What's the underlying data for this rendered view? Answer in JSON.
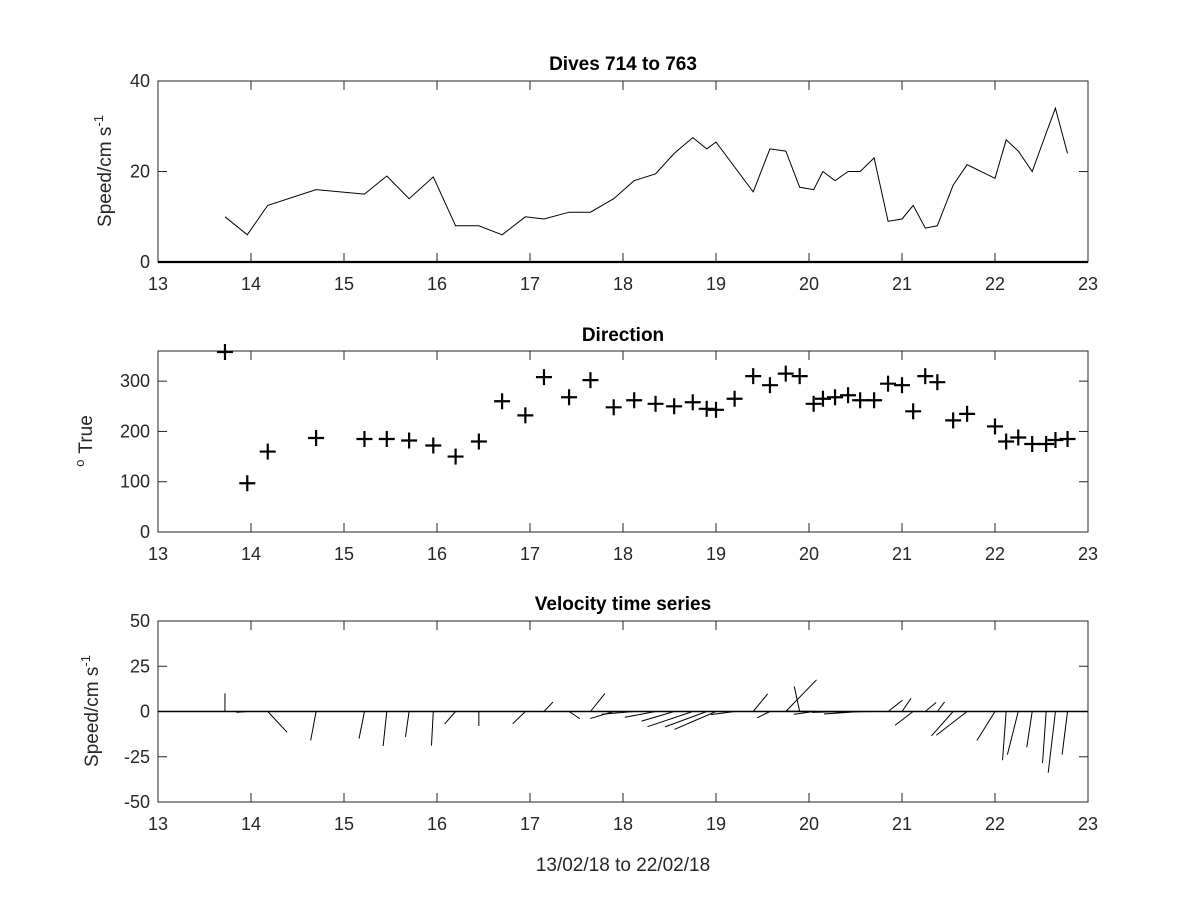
{
  "chart_data": [
    {
      "type": "line",
      "title": "Dives 714 to 763",
      "ylabel": "Speed/cm s",
      "ylabel_sup": "-1",
      "xlim": [
        13,
        23
      ],
      "ylim": [
        0,
        40
      ],
      "xticks": [
        13,
        14,
        15,
        16,
        17,
        18,
        19,
        20,
        21,
        22,
        23
      ],
      "yticks": [
        0,
        20,
        40
      ],
      "grid": false,
      "zero_line": true,
      "series": [
        {
          "x": [
            13.72,
            13.96,
            14.18,
            14.7,
            15.22,
            15.46,
            15.7,
            15.96,
            16.2,
            16.45,
            16.7,
            16.95,
            17.15,
            17.42,
            17.65,
            17.9,
            18.12,
            18.35,
            18.55,
            18.75,
            18.9,
            19.0,
            19.2,
            19.4,
            19.58,
            19.75,
            19.9,
            20.05,
            20.15,
            20.28,
            20.42,
            20.55,
            20.7,
            20.85,
            21.0,
            21.12,
            21.25,
            21.38,
            21.55,
            21.7,
            22.0,
            22.12,
            22.25,
            22.4,
            22.55,
            22.65,
            22.78
          ],
          "y": [
            10,
            6,
            12.5,
            16,
            15,
            19,
            14,
            18.8,
            8,
            8,
            6,
            10,
            9.5,
            11,
            11,
            14,
            18,
            19.5,
            24,
            27.5,
            25,
            26.5,
            21,
            15.5,
            25,
            24.5,
            16.5,
            16,
            20,
            18,
            20,
            20,
            23,
            9,
            9.5,
            12.5,
            7.5,
            8,
            17,
            21.5,
            18.5,
            27,
            24.5,
            20,
            28.5,
            34,
            24
          ]
        }
      ]
    },
    {
      "type": "scatter",
      "title": "Direction",
      "ylabel": "True",
      "ylabel_sup": "o",
      "xlim": [
        13,
        23
      ],
      "ylim": [
        0,
        360
      ],
      "xticks": [
        13,
        14,
        15,
        16,
        17,
        18,
        19,
        20,
        21,
        22,
        23
      ],
      "yticks": [
        0,
        100,
        200,
        300
      ],
      "grid": false,
      "marker": "+",
      "series": [
        {
          "x": [
            13.72,
            13.96,
            14.18,
            14.7,
            15.22,
            15.46,
            15.7,
            15.96,
            16.2,
            16.45,
            16.7,
            16.95,
            17.15,
            17.42,
            17.65,
            17.9,
            18.12,
            18.35,
            18.55,
            18.75,
            18.9,
            19.0,
            19.2,
            19.4,
            19.58,
            19.75,
            19.9,
            20.05,
            20.15,
            20.28,
            20.42,
            20.55,
            20.7,
            20.85,
            21.0,
            21.12,
            21.25,
            21.38,
            21.55,
            21.7,
            22.0,
            22.12,
            22.25,
            22.4,
            22.55,
            22.65,
            22.78
          ],
          "y": [
            358,
            97,
            160,
            187,
            185,
            185,
            182,
            172,
            150,
            180,
            260,
            232,
            308,
            268,
            302,
            248,
            262,
            255,
            250,
            258,
            245,
            243,
            265,
            310,
            292,
            315,
            310,
            255,
            265,
            268,
            272,
            262,
            262,
            295,
            292,
            240,
            310,
            298,
            222,
            235,
            210,
            180,
            188,
            175,
            175,
            183,
            185
          ]
        }
      ]
    },
    {
      "type": "line",
      "title": "Velocity time series",
      "ylabel": "Speed/cm s",
      "ylabel_sup": "-1",
      "xlabel": "13/02/18 to 22/02/18",
      "xlim": [
        13,
        23
      ],
      "ylim": [
        -50,
        50
      ],
      "xticks": [
        13,
        14,
        15,
        16,
        17,
        18,
        19,
        20,
        21,
        22,
        23
      ],
      "yticks": [
        -50,
        -25,
        0,
        25,
        50
      ],
      "grid": false,
      "zero_line": true,
      "note_style": "stick plot: each stick drawn from (x, 0) by components u (east) and v (north)",
      "sticks": {
        "x": [
          13.72,
          13.96,
          14.18,
          14.7,
          15.22,
          15.46,
          15.7,
          15.96,
          16.2,
          16.45,
          16.7,
          16.95,
          17.15,
          17.42,
          17.65,
          17.9,
          18.12,
          18.35,
          18.55,
          18.75,
          18.9,
          19.0,
          19.2,
          19.4,
          19.58,
          19.75,
          19.9,
          20.05,
          20.15,
          20.28,
          20.42,
          20.55,
          20.7,
          20.85,
          21.0,
          21.12,
          21.25,
          21.38,
          21.55,
          21.7,
          22.0,
          22.12,
          22.25,
          22.4,
          22.55,
          22.65,
          22.78
        ],
        "u": [
          0,
          -6,
          10.7,
          -3,
          -3,
          -2,
          -2,
          -1,
          -6,
          0,
          -1,
          -7,
          5,
          6,
          8,
          -13,
          -18,
          -17,
          -18,
          -25,
          -23,
          -23,
          -13,
          8,
          -7,
          17,
          -3,
          -11,
          -20,
          -18,
          -20,
          -20,
          -22,
          8,
          5,
          -10,
          6,
          4,
          -12,
          -17,
          -10,
          -2,
          -6,
          -3,
          -2,
          -4,
          -3
        ],
        "v": [
          10,
          -0.5,
          -11.5,
          -16,
          -15,
          -19,
          -14,
          -18.8,
          -6.8,
          -8,
          -0.1,
          -6.8,
          5.3,
          -4,
          10,
          -3.9,
          -1.5,
          -3.2,
          -5.3,
          -8.4,
          -8.5,
          -9.9,
          -1.7,
          9.8,
          -3.5,
          17.5,
          13.8,
          -1.6,
          0.2,
          -0.1,
          -0.5,
          -1.4,
          -0.3,
          6.2,
          7.3,
          -7.6,
          5,
          5.3,
          -13.5,
          -13.1,
          -16,
          -26.9,
          -23.8,
          -19.8,
          -28.5,
          -33.8,
          -23.8
        ]
      }
    }
  ]
}
